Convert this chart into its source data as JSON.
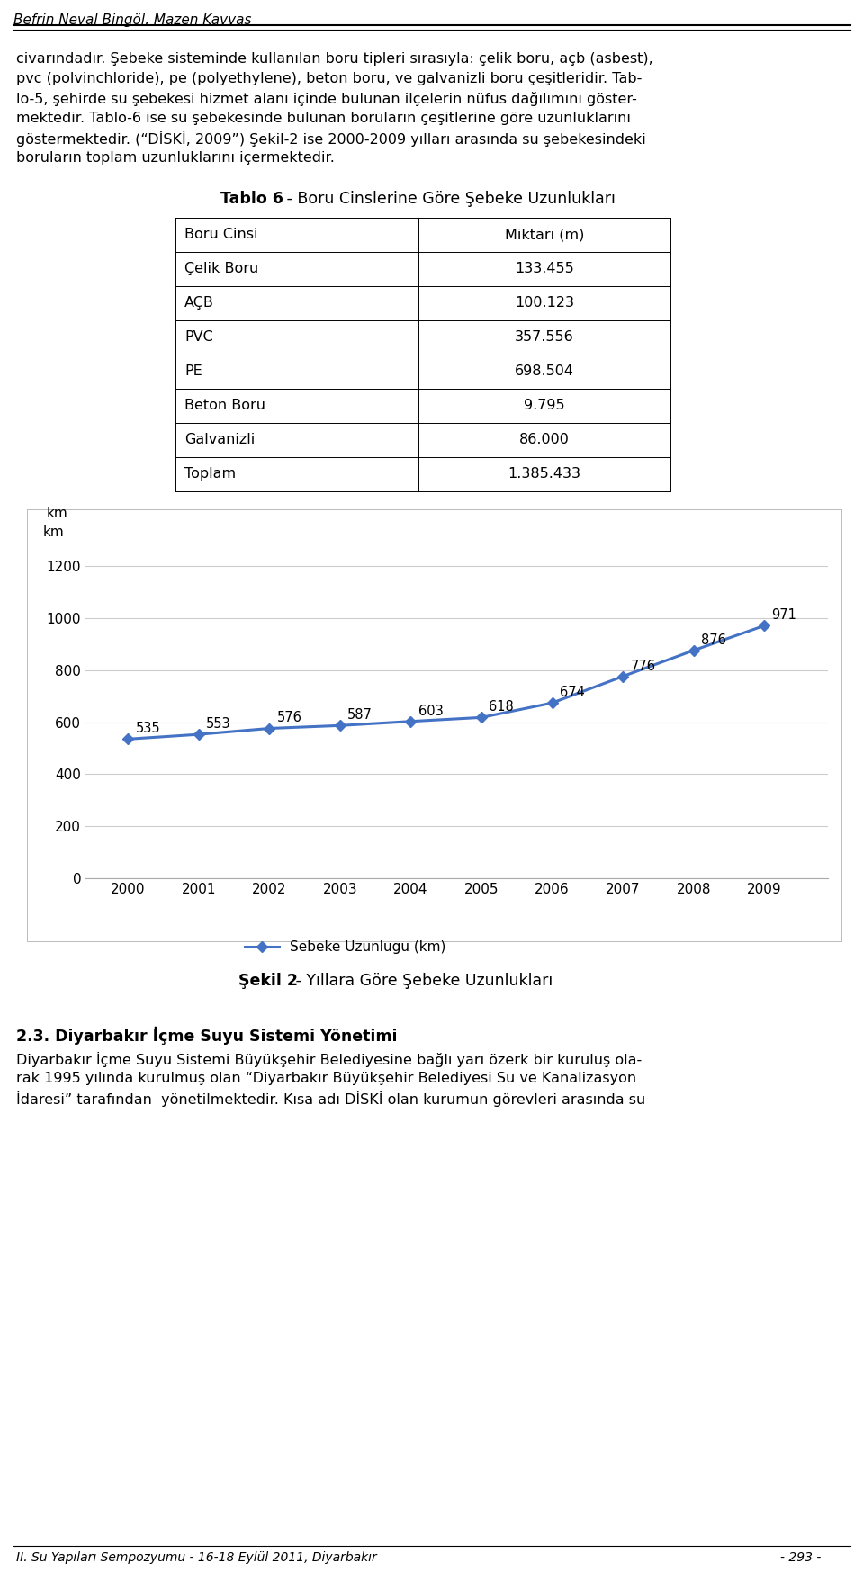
{
  "header_text": "Befrin Neval Bingöl, Mazen Kavvas",
  "body1_lines": [
    "civarındadır. Şebeke sisteminde kullanılan boru tipleri sırasıyla: çelik boru, açb (asbest),",
    "pvc (polvinchloride), pe (polyethylene), beton boru, ve galvanizli boru çeşitleridir. Tab-",
    "lo-5, şehirde su şebekesi hizmet alanı içinde bulunan ilçelerin nüfus dağılımını göster-",
    "mektedir. Tablo-6 ise su şebekesinde bulunan boruların çeşitlerine göre uzunluklarını",
    "göstermektedir. (“DİSKİ, 2009”) Şekil-2 ise 2000-2009 yılları arasında su şebekesindeki",
    "boruların toplam uzunluklarını içermektedir."
  ],
  "table_title_bold": "Tablo 6",
  "table_title_rest": " - Boru Cinslerine Göre Şebeke Uzunlukları",
  "table_headers": [
    "Boru Cinsi",
    "Miktarı (m)"
  ],
  "table_rows": [
    [
      "Çelik Boru",
      "133.455"
    ],
    [
      "AÇB",
      "100.123"
    ],
    [
      "PVC",
      "357.556"
    ],
    [
      "PE",
      "698.504"
    ],
    [
      "Beton Boru",
      "9.795"
    ],
    [
      "Galvanizli",
      "86.000"
    ],
    [
      "Toplam",
      "1.385.433"
    ]
  ],
  "chart_years": [
    2000,
    2001,
    2002,
    2003,
    2004,
    2005,
    2006,
    2007,
    2008,
    2009
  ],
  "chart_values": [
    535,
    553,
    576,
    587,
    603,
    618,
    674,
    776,
    876,
    971
  ],
  "chart_ylabel": "km",
  "chart_yticks": [
    0,
    200,
    400,
    600,
    800,
    1000,
    1200
  ],
  "chart_ylim": [
    0,
    1280
  ],
  "chart_legend": "Sebeke Uzunlugu (km)",
  "chart_line_color": "#4472C4",
  "sekil_bold": "Şekil 2",
  "sekil_rest": " - Yıllara Göre Şebeke Uzunlukları",
  "section_bold": "2.3. Diyarbakır İçme Suyu Sistemi Yönetimi",
  "body2_lines": [
    "Diyarbakır İçme Suyu Sistemi Büyükşehir Belediyesine bağlı yarı özerk bir kuruluş ola-",
    "rak 1995 yılında kurulmuş olan “Diyarbakır Büyükşehir Belediyesi Su ve Kanalizasyon",
    "İdaresi” tarafından  yönetilmektedir. Kısa adı DİSKİ olan kurumun görevleri arasında su"
  ],
  "footer_left": "II. Su Yapıları Sempozyumu - 16-18 Eylül 2011, Diyarbakır",
  "footer_right": "- 293 -",
  "bg_color": "#ffffff",
  "line_color": "#000000",
  "chart_border_color": "#bbbbbb",
  "grid_color": "#cccccc"
}
